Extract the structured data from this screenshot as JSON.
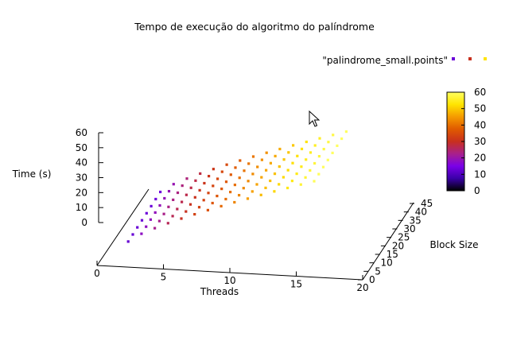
{
  "chart_data": {
    "type": "scatter",
    "title": "Tempo de execução do algoritmo do palíndrome",
    "xlabel": "Threads",
    "ylabel": "Block Size",
    "zlabel": "Time (s)",
    "x_ticks": [
      "0",
      "5",
      "10",
      "15",
      "20"
    ],
    "y_ticks": [
      "0",
      "5",
      "10",
      "15",
      "20",
      "25",
      "30",
      "35",
      "40",
      "45"
    ],
    "z_ticks": [
      "0",
      "10",
      "20",
      "30",
      "40",
      "50",
      "60"
    ],
    "xlim": [
      0,
      20
    ],
    "ylim": [
      0,
      45
    ],
    "zlim": [
      0,
      60
    ],
    "legend": {
      "label": "\"palindrome_small.points\"",
      "placement": "top-right"
    },
    "colorbar": {
      "ticks": [
        "0",
        "10",
        "20",
        "30",
        "40",
        "50",
        "60"
      ],
      "range": [
        0,
        60
      ],
      "palette": [
        "#000000",
        "#3a00a8",
        "#7a00e8",
        "#a8208c",
        "#c8301e",
        "#e05a00",
        "#f59a00",
        "#ffe400",
        "#ffff60"
      ]
    },
    "series": [
      {
        "name": "\"palindrome_small.points\"",
        "threads": [
          2,
          3,
          4,
          5,
          6,
          7,
          8,
          9,
          10,
          11,
          12,
          13,
          14,
          15,
          16
        ],
        "block_sizes": [
          4,
          8,
          12,
          16,
          20,
          24,
          28,
          32
        ],
        "time_model": "time increases from about 13 s at 2 threads to about 60 s at 16 threads; nearly constant across block size"
      }
    ]
  }
}
